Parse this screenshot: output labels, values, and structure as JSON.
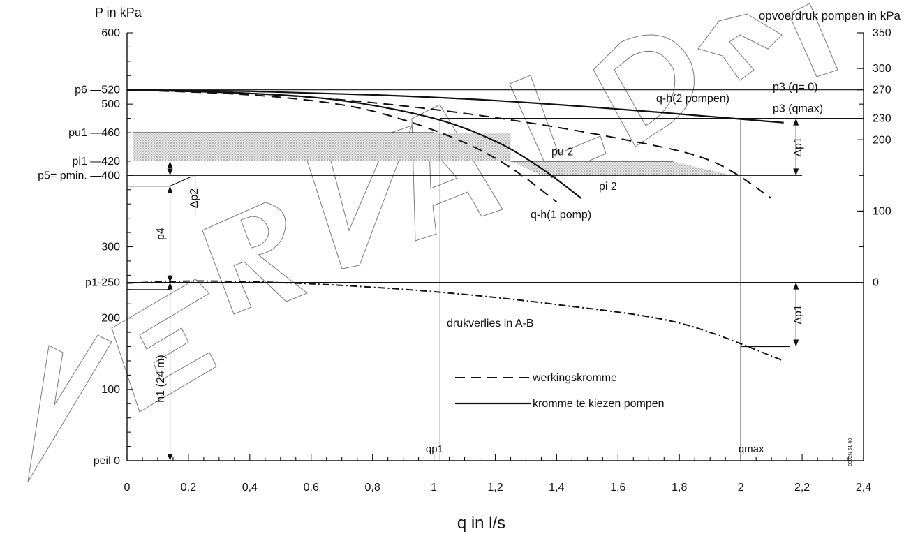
{
  "chart_data": {
    "type": "line",
    "title": "",
    "xlabel": "q in l/s",
    "ylabel_left": "P in kPa",
    "ylabel_right": "opvoerdruk pompen in kPa",
    "xlim": [
      0,
      2.4
    ],
    "ylim_left": [
      0,
      600
    ],
    "right_axis_offset_kpa": 250,
    "x_ticks": [
      {
        "v": 0,
        "label": "0"
      },
      {
        "v": 0.2,
        "label": "0,2"
      },
      {
        "v": 0.4,
        "label": "0,4"
      },
      {
        "v": 0.6,
        "label": "0,6"
      },
      {
        "v": 0.8,
        "label": "0,8"
      },
      {
        "v": 1.0,
        "label": "1"
      },
      {
        "v": 1.2,
        "label": "1,2"
      },
      {
        "v": 1.4,
        "label": "1,4"
      },
      {
        "v": 1.6,
        "label": "1,6"
      },
      {
        "v": 1.8,
        "label": "1,8"
      },
      {
        "v": 2.0,
        "label": "2"
      },
      {
        "v": 2.2,
        "label": "2,2"
      },
      {
        "v": 2.4,
        "label": "2,4"
      }
    ],
    "left_ticks": [
      {
        "v": 600,
        "label": "600"
      },
      {
        "v": 520,
        "label": "p6  —520"
      },
      {
        "v": 500,
        "label": "500"
      },
      {
        "v": 460,
        "label": "pu1  —460"
      },
      {
        "v": 420,
        "label": "pi1  —420"
      },
      {
        "v": 400,
        "label": "p5= pmin. —400"
      },
      {
        "v": 300,
        "label": "300"
      },
      {
        "v": 250,
        "label": "p1-250"
      },
      {
        "v": 200,
        "label": "200"
      },
      {
        "v": 100,
        "label": "100"
      },
      {
        "v": 0,
        "label": "peil  0"
      }
    ],
    "right_ticks": [
      {
        "v": 350,
        "label": "350"
      },
      {
        "v": 300,
        "label": "300"
      },
      {
        "v": 270,
        "label": "270"
      },
      {
        "v": 230,
        "label": "230"
      },
      {
        "v": 200,
        "label": "200"
      },
      {
        "v": 100,
        "label": "100"
      },
      {
        "v": 0,
        "label": "0"
      }
    ],
    "series": [
      {
        "name": "q-h(2 pompen)",
        "style": "solid",
        "x": [
          0,
          0.4,
          0.8,
          1.2,
          1.6,
          2.0,
          2.14
        ],
        "y": [
          520,
          518,
          513,
          505,
          493,
          479,
          474
        ]
      },
      {
        "name": "q-h(1 pomp)",
        "style": "solid",
        "x": [
          0,
          0.4,
          0.7,
          1.0,
          1.2,
          1.35,
          1.48
        ],
        "y": [
          520,
          515,
          505,
          480,
          448,
          410,
          368
        ]
      },
      {
        "name": "werkingskromme",
        "style": "dashed",
        "x": [
          0,
          0.4,
          0.7,
          0.9,
          1.1,
          1.25,
          1.4
        ],
        "y": [
          520,
          513,
          499,
          478,
          446,
          411,
          363
        ]
      },
      {
        "name": "werkingskromme",
        "style": "dashed",
        "x": [
          0,
          0.4,
          0.8,
          1.2,
          1.6,
          1.9,
          2.1
        ],
        "y": [
          520,
          515,
          502,
          481,
          452,
          421,
          368
        ]
      },
      {
        "name": "drukverlies in A-B",
        "style": "dashdot",
        "x": [
          0,
          0.25,
          0.6,
          1.0,
          1.4,
          1.8,
          2.14
        ],
        "y": [
          249,
          252,
          248,
          237,
          219,
          193,
          140
        ]
      }
    ],
    "shaded_band": {
      "x_from": 0.02,
      "x_to": 1.25,
      "upper": 460,
      "lower": 420
    },
    "shaded_wedge": {
      "points": [
        [
          1.25,
          420
        ],
        [
          1.78,
          420
        ],
        [
          1.95,
          402
        ],
        [
          2.0,
          400
        ],
        [
          1.35,
          400
        ]
      ]
    },
    "hlines": [
      {
        "y": 520,
        "x_from": 0,
        "x_to": 2.4
      },
      {
        "y": 480,
        "x_from": 1.02,
        "x_to": 2.4
      },
      {
        "y": 460,
        "x_from": 0.02,
        "x_to": 1.0
      },
      {
        "y": 420,
        "x_from": 1.25,
        "x_to": 1.78
      },
      {
        "y": 400,
        "x_from": 0,
        "x_to": 2.2
      },
      {
        "y": 250,
        "x_from": 0,
        "x_to": 2.4
      },
      {
        "y": 160,
        "x_from": 2.0,
        "x_to": 2.16
      }
    ],
    "vlines": [
      {
        "x": 1.02,
        "y_from": 0,
        "y_to": 480,
        "label": "qp1"
      },
      {
        "x": 2.0,
        "y_from": 0,
        "y_to": 480,
        "label": "qmax"
      }
    ],
    "annotations": {
      "p3_q0": "p3 (q= 0)",
      "p3_qmax": "p3 (qmax)",
      "qh2": "q-h(2 pompen)",
      "qh1": "q-h(1 pomp)",
      "pu2": "pu 2",
      "pi2": "pi 2",
      "dp1_top": "Δp1",
      "dp1_bottom": "Δp1",
      "dp2": "Δp2",
      "p4": "p4",
      "h1": "h1 (24 m)",
      "drukverlies": "drukverlies in A-B",
      "code": "0902N 61 40"
    },
    "legend": [
      {
        "style": "dashed",
        "label": "werkingskromme"
      },
      {
        "style": "solid",
        "label": "kromme te kiezen pompen"
      }
    ]
  }
}
